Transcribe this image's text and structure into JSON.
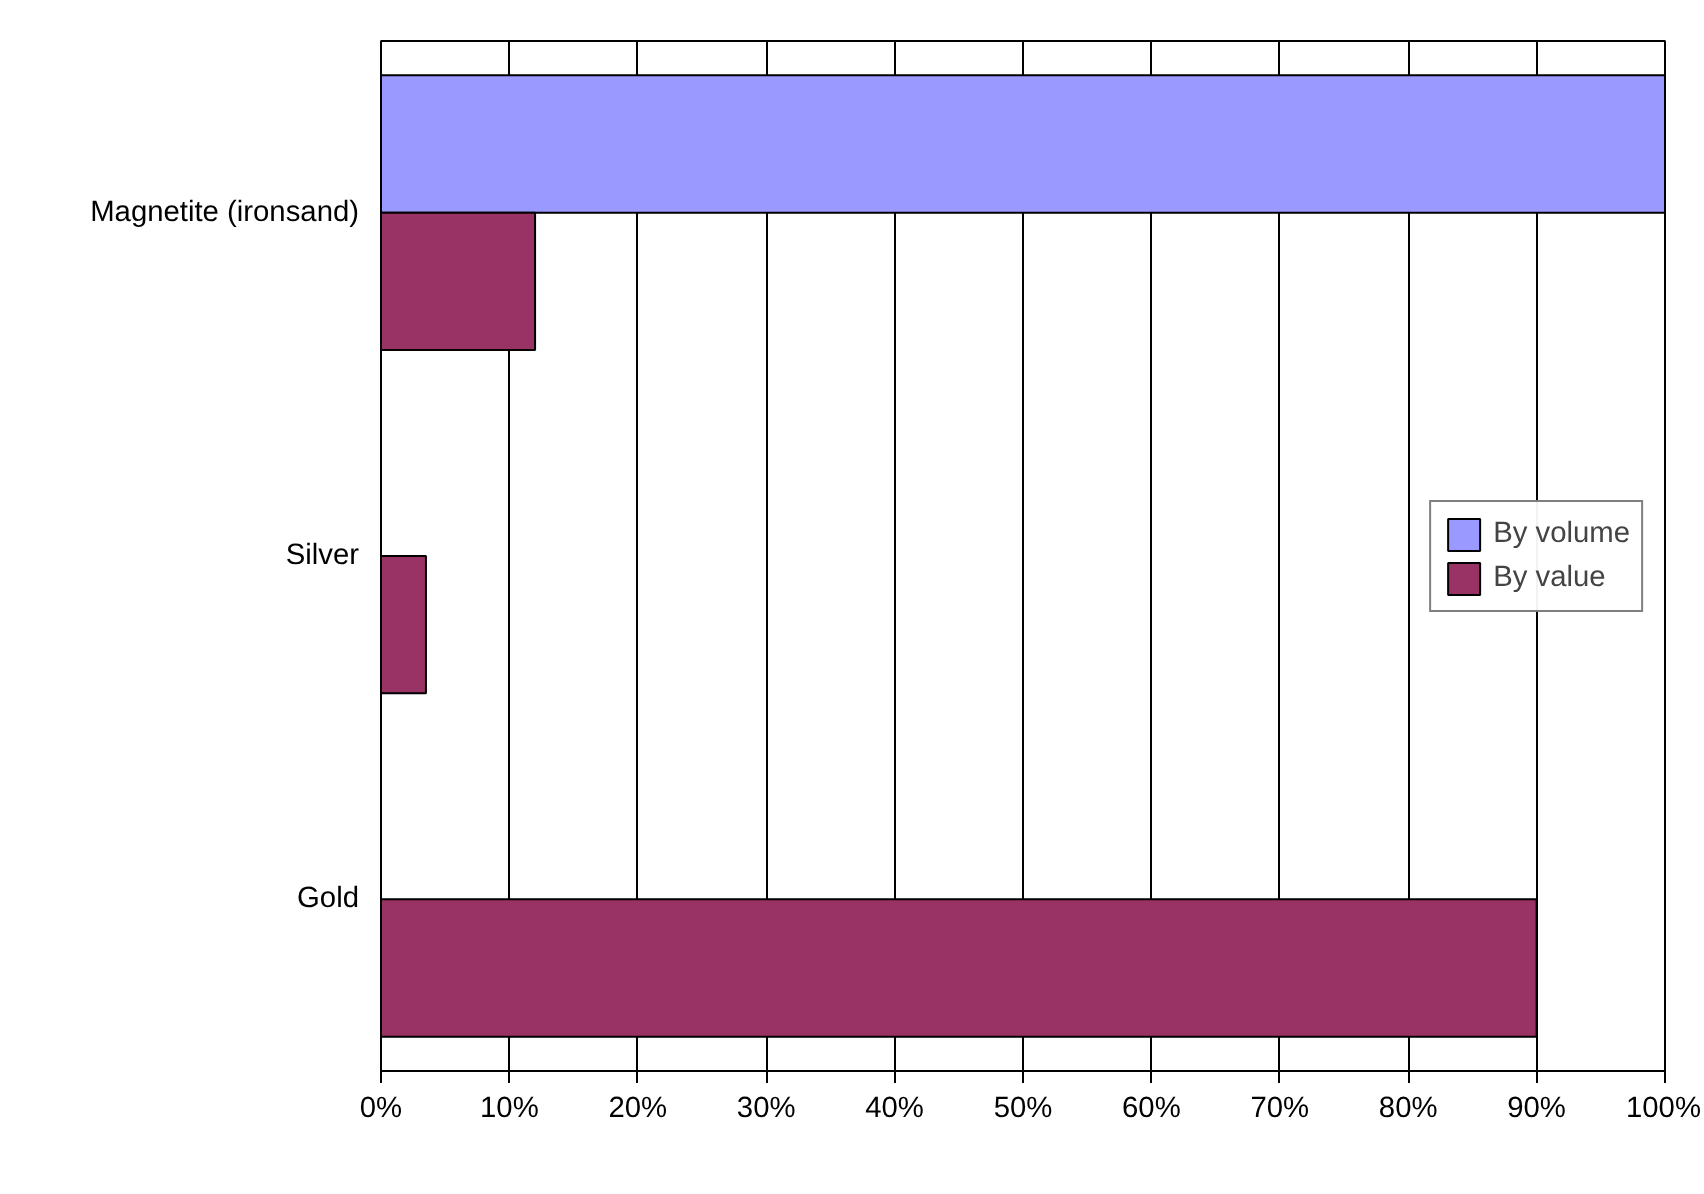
{
  "chart_data": {
    "type": "bar",
    "orientation": "horizontal",
    "categories": [
      "Magnetite (ironsand)",
      "Silver",
      "Gold"
    ],
    "series": [
      {
        "name": "By volume",
        "color": "#9999ff",
        "values": [
          100,
          null,
          null
        ]
      },
      {
        "name": "By value",
        "color": "#993366",
        "values": [
          12,
          3.5,
          90
        ]
      }
    ],
    "xlim": [
      0,
      100
    ],
    "xticks": [
      {
        "value": 0,
        "label": "0%"
      },
      {
        "value": 10,
        "label": "10%"
      },
      {
        "value": 20,
        "label": "20%"
      },
      {
        "value": 30,
        "label": "30%"
      },
      {
        "value": 40,
        "label": "40%"
      },
      {
        "value": 50,
        "label": "50%"
      },
      {
        "value": 60,
        "label": "60%"
      },
      {
        "value": 70,
        "label": "70%"
      },
      {
        "value": 80,
        "label": "80%"
      },
      {
        "value": 90,
        "label": "90%"
      },
      {
        "value": 100,
        "label": "100%"
      }
    ],
    "grid": "x",
    "legend": "right"
  }
}
